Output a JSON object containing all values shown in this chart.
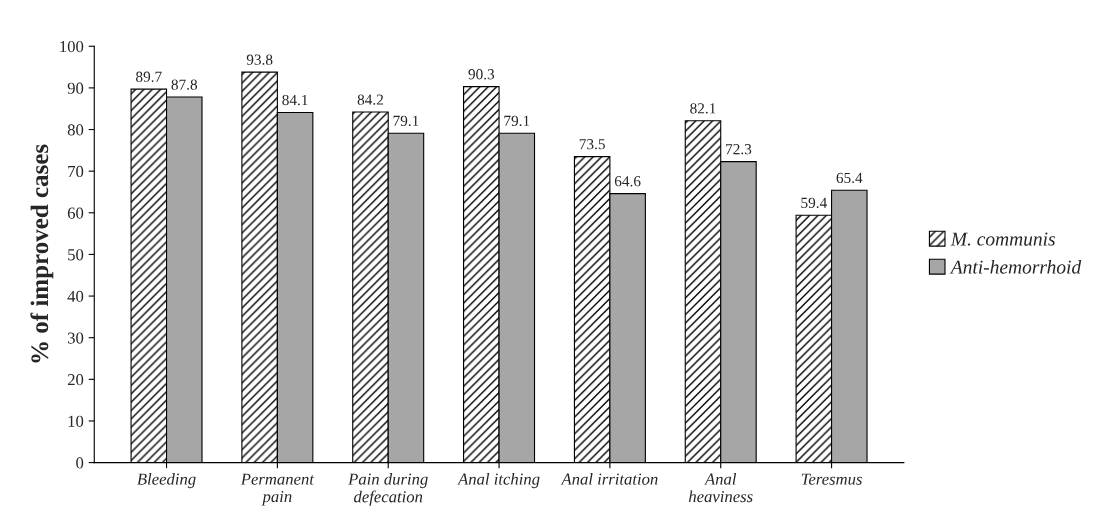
{
  "chart_data": {
    "type": "bar",
    "ylabel": "% of improved cases",
    "categories": [
      "Bleeding",
      "Permanent\npain",
      "Pain during\ndefecation",
      "Anal itching",
      "Anal irritation",
      "Anal\nheaviness",
      "Teresmus"
    ],
    "series": [
      {
        "name": "M. communis",
        "color": "#000000",
        "values": [
          89.7,
          93.8,
          84.2,
          90.3,
          73.5,
          82.1,
          59.4
        ]
      },
      {
        "name": "Anti-hemorrhoid",
        "color": "#a6a6a6",
        "values": [
          87.8,
          84.1,
          79.1,
          79.1,
          64.6,
          72.3,
          65.4
        ]
      }
    ],
    "ylim": [
      0,
      100
    ],
    "yticks": [
      0,
      10,
      20,
      30,
      40,
      50,
      60,
      70,
      80,
      90,
      100
    ],
    "data_labels": true,
    "grid": false,
    "legend": "right"
  }
}
